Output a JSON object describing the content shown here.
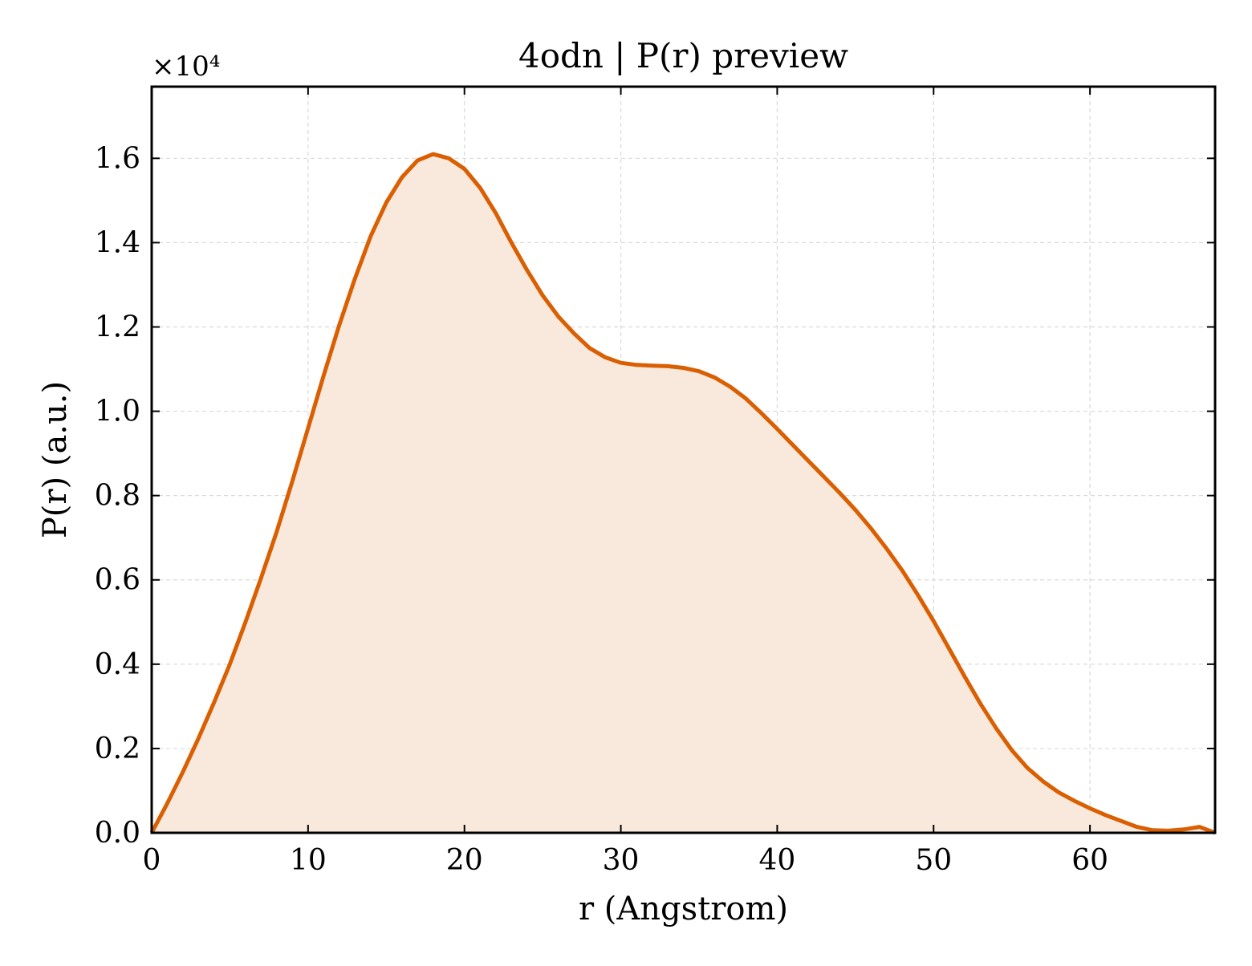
{
  "chart_data": {
    "type": "area",
    "title": "4odn | P(r) preview",
    "xlabel": "r (Angstrom)",
    "ylabel": "P(r) (a.u.)",
    "y_multiplier": "×10⁴",
    "xlim": [
      0,
      68
    ],
    "ylim": [
      0,
      17700
    ],
    "x_ticks": [
      0,
      10,
      20,
      30,
      40,
      50,
      60
    ],
    "x_tick_labels": [
      "0",
      "10",
      "20",
      "30",
      "40",
      "50",
      "60"
    ],
    "y_ticks": [
      0,
      2000,
      4000,
      6000,
      8000,
      10000,
      12000,
      14000,
      16000
    ],
    "y_tick_labels": [
      "0.0",
      "0.2",
      "0.4",
      "0.6",
      "0.8",
      "1.0",
      "1.2",
      "1.4",
      "1.6"
    ],
    "grid": true,
    "legend": "none",
    "colors": {
      "line": "#d95f02",
      "fill": "#f9e9dd",
      "grid": "#d9d9d9",
      "axes": "#000000"
    },
    "series": [
      {
        "x": [
          0,
          1,
          2,
          3,
          4,
          5,
          6,
          7,
          8,
          9,
          10,
          11,
          12,
          13,
          14,
          15,
          16,
          17,
          18,
          19,
          20,
          21,
          22,
          23,
          24,
          25,
          26,
          27,
          28,
          29,
          30,
          31,
          32,
          33,
          34,
          35,
          36,
          37,
          38,
          39,
          40,
          41,
          42,
          43,
          44,
          45,
          46,
          47,
          48,
          49,
          50,
          51,
          52,
          53,
          54,
          55,
          56,
          57,
          58,
          59,
          60,
          61,
          62,
          63,
          64,
          65,
          66,
          67,
          68
        ],
        "y": [
          0,
          700,
          1450,
          2250,
          3100,
          4000,
          5000,
          6050,
          7150,
          8350,
          9600,
          10850,
          12050,
          13150,
          14150,
          14950,
          15550,
          15950,
          16100,
          16000,
          15750,
          15300,
          14700,
          14000,
          13350,
          12750,
          12250,
          11850,
          11500,
          11280,
          11150,
          11100,
          11080,
          11070,
          11030,
          10950,
          10800,
          10580,
          10300,
          9950,
          9580,
          9200,
          8820,
          8440,
          8060,
          7660,
          7220,
          6740,
          6220,
          5640,
          5020,
          4360,
          3700,
          3060,
          2480,
          1960,
          1540,
          1220,
          960,
          760,
          580,
          420,
          280,
          140,
          60,
          50,
          80,
          140,
          0
        ]
      }
    ]
  }
}
